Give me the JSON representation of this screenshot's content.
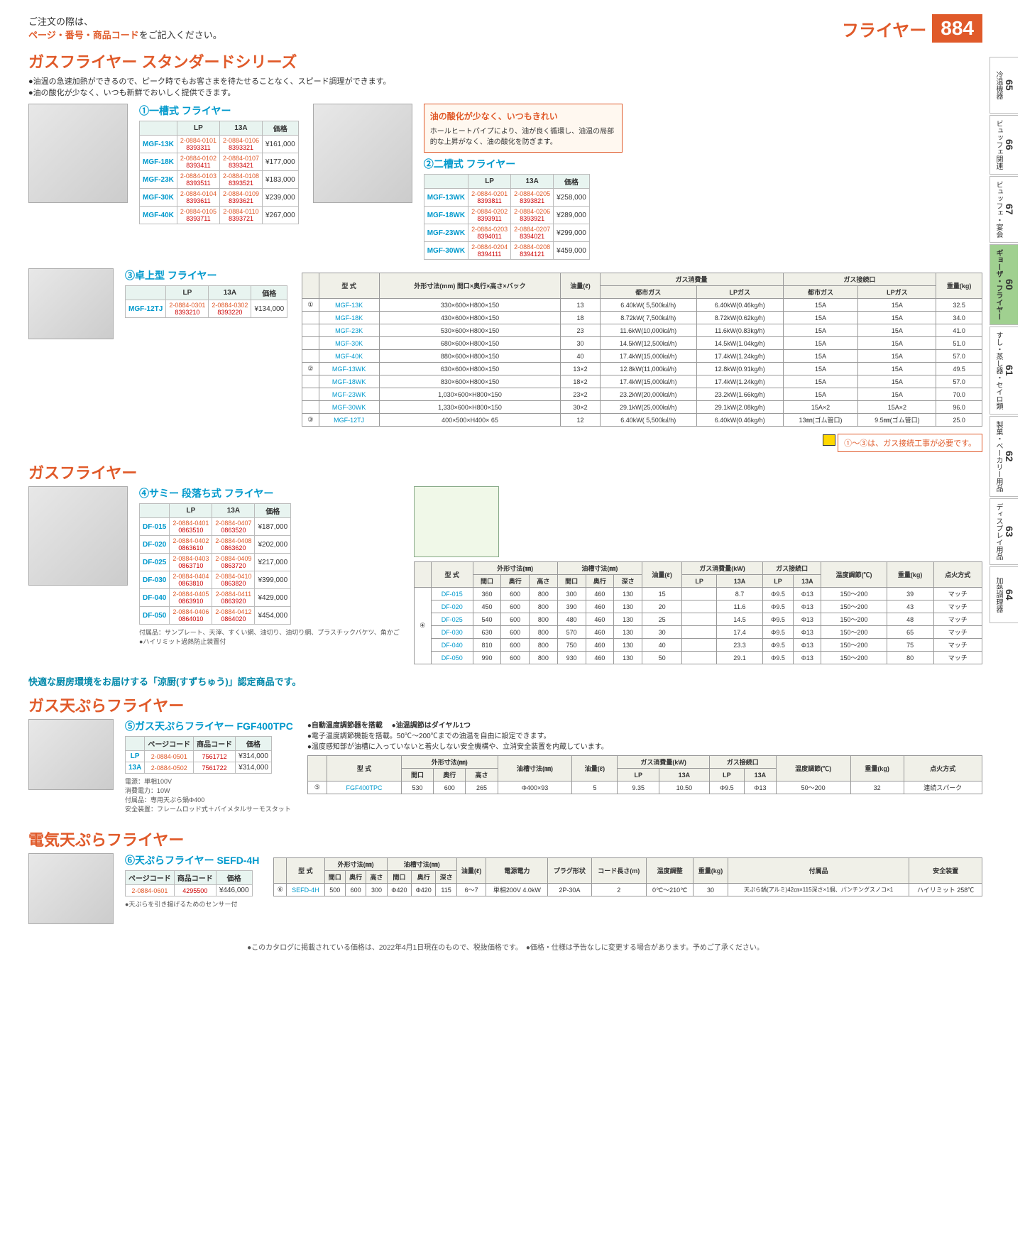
{
  "header": {
    "order_note_pre": "ご注文の際は、",
    "order_note_em": "ページ・番号・商品コード",
    "order_note_post": "をご記入ください。",
    "page_title": "フライヤー",
    "page_num": "884"
  },
  "side_tabs": [
    {
      "num": "65",
      "label": "冷温機器"
    },
    {
      "num": "66",
      "label": "ビュッフェ関連"
    },
    {
      "num": "67",
      "label": "ビュッフェ・宴会"
    },
    {
      "num": "60",
      "label": "ギョーザ・フライヤー",
      "active": true
    },
    {
      "num": "61",
      "label": "すし・蒸し器・セイロ類"
    },
    {
      "num": "62",
      "label": "製菓・ベーカリー用品"
    },
    {
      "num": "63",
      "label": "ディスプレイ用品"
    },
    {
      "num": "64",
      "label": "加熱調理器"
    }
  ],
  "sec1": {
    "title": "ガスフライヤー スタンダードシリーズ",
    "bullet1": "●油温の急速加熱ができるので、ピーク時でもお客さまを待たせることなく、スピード調理ができます。",
    "bullet2": "●油の酸化が少なく、いつも新鮮でおいしく提供できます。",
    "callout_title": "油の酸化が少なく、いつもきれい",
    "callout_body": "ホールヒートパイプにより、油が良く循環し、油温の局部的な上昇がなく、油の酸化を防ぎます。"
  },
  "prod1": {
    "name": "①一槽式 フライヤー",
    "header": {
      "lp": "LP",
      "a13": "13A",
      "price": "価格"
    },
    "rows": [
      {
        "model": "MGF-13K",
        "lp_t": "2-0884-0101",
        "lp_b": "8393311",
        "a_t": "2-0884-0106",
        "a_b": "8393321",
        "price": "¥161,000"
      },
      {
        "model": "MGF-18K",
        "lp_t": "2-0884-0102",
        "lp_b": "8393411",
        "a_t": "2-0884-0107",
        "a_b": "8393421",
        "price": "¥177,000"
      },
      {
        "model": "MGF-23K",
        "lp_t": "2-0884-0103",
        "lp_b": "8393511",
        "a_t": "2-0884-0108",
        "a_b": "8393521",
        "price": "¥183,000"
      },
      {
        "model": "MGF-30K",
        "lp_t": "2-0884-0104",
        "lp_b": "8393611",
        "a_t": "2-0884-0109",
        "a_b": "8393621",
        "price": "¥239,000"
      },
      {
        "model": "MGF-40K",
        "lp_t": "2-0884-0105",
        "lp_b": "8393711",
        "a_t": "2-0884-0110",
        "a_b": "8393721",
        "price": "¥267,000"
      }
    ]
  },
  "prod2": {
    "name": "②二槽式 フライヤー",
    "rows": [
      {
        "model": "MGF-13WK",
        "lp_t": "2-0884-0201",
        "lp_b": "8393811",
        "a_t": "2-0884-0205",
        "a_b": "8393821",
        "price": "¥258,000"
      },
      {
        "model": "MGF-18WK",
        "lp_t": "2-0884-0202",
        "lp_b": "8393911",
        "a_t": "2-0884-0206",
        "a_b": "8393921",
        "price": "¥289,000"
      },
      {
        "model": "MGF-23WK",
        "lp_t": "2-0884-0203",
        "lp_b": "8394011",
        "a_t": "2-0884-0207",
        "a_b": "8394021",
        "price": "¥299,000"
      },
      {
        "model": "MGF-30WK",
        "lp_t": "2-0884-0204",
        "lp_b": "8394111",
        "a_t": "2-0884-0208",
        "a_b": "8394121",
        "price": "¥459,000"
      }
    ]
  },
  "prod3": {
    "name": "③卓上型 フライヤー",
    "rows": [
      {
        "model": "MGF-12TJ",
        "lp_t": "2-0884-0301",
        "lp_b": "8393210",
        "a_t": "2-0884-0302",
        "a_b": "8393220",
        "price": "¥134,000"
      }
    ]
  },
  "spec1": {
    "headers": {
      "model": "型 式",
      "dims": "外形寸法(mm)\n間口×奥行×高さ×バック",
      "oil": "油量(ℓ)",
      "gas": "ガス消費量",
      "conn": "ガス接続口",
      "weight": "重量(kg)",
      "city": "都市ガス",
      "lp": "LPガス"
    },
    "rows": [
      {
        "g": "①",
        "model": "MGF-13K",
        "dims": "330×600×H800×150",
        "oil": "13",
        "cg": "6.40kW( 5,500㎉/h)",
        "lg": "6.40kW(0.46kg/h)",
        "cc": "15A",
        "lc": "15A",
        "w": "32.5"
      },
      {
        "model": "MGF-18K",
        "dims": "430×600×H800×150",
        "oil": "18",
        "cg": "8.72kW( 7,500㎉/h)",
        "lg": "8.72kW(0.62kg/h)",
        "cc": "15A",
        "lc": "15A",
        "w": "34.0"
      },
      {
        "model": "MGF-23K",
        "dims": "530×600×H800×150",
        "oil": "23",
        "cg": "11.6kW(10,000㎉/h)",
        "lg": "11.6kW(0.83kg/h)",
        "cc": "15A",
        "lc": "15A",
        "w": "41.0"
      },
      {
        "model": "MGF-30K",
        "dims": "680×600×H800×150",
        "oil": "30",
        "cg": "14.5kW(12,500㎉/h)",
        "lg": "14.5kW(1.04kg/h)",
        "cc": "15A",
        "lc": "15A",
        "w": "51.0"
      },
      {
        "model": "MGF-40K",
        "dims": "880×600×H800×150",
        "oil": "40",
        "cg": "17.4kW(15,000㎉/h)",
        "lg": "17.4kW(1.24kg/h)",
        "cc": "15A",
        "lc": "15A",
        "w": "57.0"
      },
      {
        "g": "②",
        "model": "MGF-13WK",
        "dims": "630×600×H800×150",
        "oil": "13×2",
        "cg": "12.8kW(11,000㎉/h)",
        "lg": "12.8kW(0.91kg/h)",
        "cc": "15A",
        "lc": "15A",
        "w": "49.5"
      },
      {
        "model": "MGF-18WK",
        "dims": "830×600×H800×150",
        "oil": "18×2",
        "cg": "17.4kW(15,000㎉/h)",
        "lg": "17.4kW(1.24kg/h)",
        "cc": "15A",
        "lc": "15A",
        "w": "57.0"
      },
      {
        "model": "MGF-23WK",
        "dims": "1,030×600×H800×150",
        "oil": "23×2",
        "cg": "23.2kW(20,000㎉/h)",
        "lg": "23.2kW(1.66kg/h)",
        "cc": "15A",
        "lc": "15A",
        "w": "70.0"
      },
      {
        "model": "MGF-30WK",
        "dims": "1,330×600×H800×150",
        "oil": "30×2",
        "cg": "29.1kW(25,000㎉/h)",
        "lg": "29.1kW(2.08kg/h)",
        "cc": "15A×2",
        "lc": "15A×2",
        "w": "96.0"
      },
      {
        "g": "③",
        "model": "MGF-12TJ",
        "dims": "400×500×H400× 65",
        "oil": "12",
        "cg": "6.40kW( 5,500㎉/h)",
        "lg": "6.40kW(0.46kg/h)",
        "cc": "13㎜(ゴム管口)",
        "lc": "9.5㎜(ゴム管口)",
        "w": "25.0"
      }
    ]
  },
  "info1": "①～③は、ガス接続工事が必要です。",
  "sec2": {
    "title": "ガスフライヤー"
  },
  "prod4": {
    "name": "④サミー 段落ち式 フライヤー",
    "rows": [
      {
        "model": "DF-015",
        "lp_t": "2-0884-0401",
        "lp_b": "0863510",
        "a_t": "2-0884-0407",
        "a_b": "0863520",
        "price": "¥187,000"
      },
      {
        "model": "DF-020",
        "lp_t": "2-0884-0402",
        "lp_b": "0863610",
        "a_t": "2-0884-0408",
        "a_b": "0863620",
        "price": "¥202,000"
      },
      {
        "model": "DF-025",
        "lp_t": "2-0884-0403",
        "lp_b": "0863710",
        "a_t": "2-0884-0409",
        "a_b": "0863720",
        "price": "¥217,000"
      },
      {
        "model": "DF-030",
        "lp_t": "2-0884-0404",
        "lp_b": "0863810",
        "a_t": "2-0884-0410",
        "a_b": "0863820",
        "price": "¥399,000"
      },
      {
        "model": "DF-040",
        "lp_t": "2-0884-0405",
        "lp_b": "0863910",
        "a_t": "2-0884-0411",
        "a_b": "0863920",
        "price": "¥429,000"
      },
      {
        "model": "DF-050",
        "lp_t": "2-0884-0406",
        "lp_b": "0864010",
        "a_t": "2-0884-0412",
        "a_b": "0864020",
        "price": "¥454,000"
      }
    ],
    "note": "付属品：サンプレート、天滓、すくい網、油切り、油切り網、プラスチックバケツ、角かご\n●ハイリミット過熱防止装置付"
  },
  "spec2": {
    "headers": {
      "model": "型 式",
      "dims": "外形寸法(㎜)",
      "tank": "油槽寸法(㎜)",
      "oil": "油量(ℓ)",
      "gas": "ガス消費量(kW)",
      "conn": "ガス接続口",
      "temp": "温度調節(℃)",
      "weight": "重量(kg)",
      "ign": "点火方式",
      "w": "間口",
      "d": "奥行",
      "h": "高さ",
      "tw": "間口",
      "td": "奥行",
      "tdp": "深さ",
      "lp": "LP",
      "a13": "13A"
    },
    "rows": [
      {
        "model": "DF-015",
        "w": "360",
        "d": "600",
        "h": "800",
        "tw": "300",
        "td": "460",
        "tdp": "130",
        "oil": "15",
        "lp": "",
        "a13": "8.7",
        "clp": "Φ9.5",
        "c13": "Φ13",
        "temp": "150～200",
        "wt": "39",
        "ign": "マッチ"
      },
      {
        "model": "DF-020",
        "w": "450",
        "d": "600",
        "h": "800",
        "tw": "390",
        "td": "460",
        "tdp": "130",
        "oil": "20",
        "lp": "",
        "a13": "11.6",
        "clp": "Φ9.5",
        "c13": "Φ13",
        "temp": "150～200",
        "wt": "43",
        "ign": "マッチ"
      },
      {
        "model": "DF-025",
        "w": "540",
        "d": "600",
        "h": "800",
        "tw": "480",
        "td": "460",
        "tdp": "130",
        "oil": "25",
        "lp": "",
        "a13": "14.5",
        "clp": "Φ9.5",
        "c13": "Φ13",
        "temp": "150～200",
        "wt": "48",
        "ign": "マッチ"
      },
      {
        "model": "DF-030",
        "w": "630",
        "d": "600",
        "h": "800",
        "tw": "570",
        "td": "460",
        "tdp": "130",
        "oil": "30",
        "lp": "",
        "a13": "17.4",
        "clp": "Φ9.5",
        "c13": "Φ13",
        "temp": "150～200",
        "wt": "65",
        "ign": "マッチ"
      },
      {
        "model": "DF-040",
        "w": "810",
        "d": "600",
        "h": "800",
        "tw": "750",
        "td": "460",
        "tdp": "130",
        "oil": "40",
        "lp": "",
        "a13": "23.3",
        "clp": "Φ9.5",
        "c13": "Φ13",
        "temp": "150～200",
        "wt": "75",
        "ign": "マッチ"
      },
      {
        "model": "DF-050",
        "w": "990",
        "d": "600",
        "h": "800",
        "tw": "930",
        "td": "460",
        "tdp": "130",
        "oil": "50",
        "lp": "",
        "a13": "29.1",
        "clp": "Φ9.5",
        "c13": "Φ13",
        "temp": "150～200",
        "wt": "80",
        "ign": "マッチ"
      }
    ]
  },
  "sec3": {
    "subtitle": "快適な厨房環境をお届けする「涼厨(すずちゅう)」認定商品です。",
    "title": "ガス天ぷらフライヤー",
    "f1": "●自動温度調節器を搭載",
    "f2": "●油温調節はダイヤル1つ",
    "b1": "●電子温度調節機能を搭載。50℃～200℃までの油温を自由に設定できます。",
    "b2": "●温度感知部が油槽に入っていないと着火しない安全機構や、立消安全装置を内蔵しています。"
  },
  "prod5": {
    "name": "⑤ガス天ぷらフライヤー FGF400TPC",
    "header_page": "ページコード",
    "header_code": "商品コード",
    "rows": [
      {
        "type": "LP",
        "pc": "2-0884-0501",
        "code": "7561712",
        "price": "¥314,000"
      },
      {
        "type": "13A",
        "pc": "2-0884-0502",
        "code": "7561722",
        "price": "¥314,000"
      }
    ],
    "note": "電源：単相100V\n消費電力：10W\n付属品：専用天ぷら鍋Φ400\n安全装置：フレームロッド式＋バイメタルサーモスタット"
  },
  "spec3": {
    "rows": [
      {
        "g": "⑤",
        "model": "FGF400TPC",
        "w": "530",
        "d": "600",
        "h": "265",
        "tank": "Φ400×93",
        "oil": "5",
        "lp": "9.35",
        "a13": "10.50",
        "clp": "Φ9.5",
        "c13": "Φ13",
        "temp": "50～200",
        "wt": "32",
        "ign": "連続スパーク"
      }
    ]
  },
  "sec4": {
    "title": "電気天ぷらフライヤー"
  },
  "prod6": {
    "name": "⑥天ぷらフライヤー SEFD-4H",
    "rows": [
      {
        "pc": "2-0884-0601",
        "code": "4295500",
        "price": "¥446,000"
      }
    ],
    "note": "●天ぷらを引き揚げるためのセンサー付"
  },
  "spec4": {
    "headers": {
      "model": "型 式",
      "dims": "外形寸法(㎜)",
      "tank": "油槽寸法(㎜)",
      "oil": "油量(ℓ)",
      "power": "電源電力",
      "plug": "プラグ形状",
      "cord": "コード長さ(m)",
      "temp": "温度調整",
      "weight": "重量(kg)",
      "acc": "付属品",
      "safe": "安全装置"
    },
    "rows": [
      {
        "g": "⑥",
        "model": "SEFD-4H",
        "w": "500",
        "d": "600",
        "h": "300",
        "tw": "Φ420",
        "td": "Φ420",
        "tdp": "115",
        "oil": "6～7",
        "power": "単相200V 4.0kW",
        "plug": "2P-30A",
        "cord": "2",
        "temp": "0℃～210℃",
        "wt": "30",
        "acc": "天ぷら鍋(アルミ)42㎝×115深さ×1個、パンチングスノコ×1",
        "safe": "ハイリミット 258℃"
      }
    ]
  },
  "footer": "●このカタログに掲載されている価格は、2022年4月1日現在のもので、税抜価格です。　●価格・仕様は予告なしに変更する場合があります。予めご了承ください。"
}
